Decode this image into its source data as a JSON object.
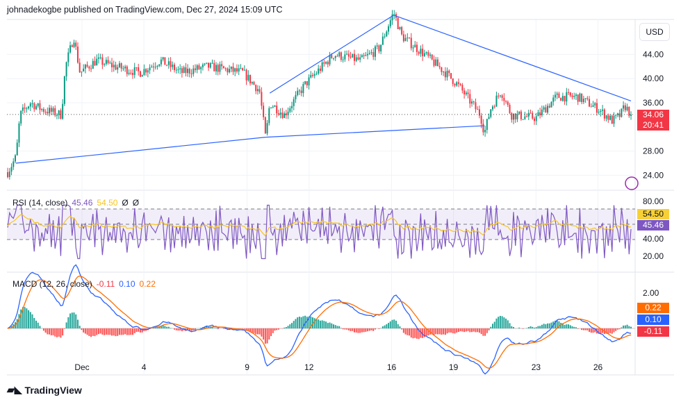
{
  "header": "johnadekogbe published on TradingView.com, Dec 27, 2024 15:09 UTC",
  "currency": "USD",
  "footer": "TradingView",
  "price_tag": {
    "price": "34.06",
    "countdown": "20:41",
    "color": "#f23645"
  },
  "rsi": {
    "label": "RSI (14, close)",
    "value": "45.46",
    "ma": "54.50",
    "na1": "Ø",
    "na2": "Ø",
    "ticks": [
      "80.00",
      "40.00",
      "20.00"
    ]
  },
  "macd": {
    "label": "MACD (12, 26, close)",
    "hist": "-0.11",
    "macd": "0.10",
    "signal": "0.22",
    "ticks": [
      "2.00"
    ]
  },
  "chart_data": {
    "type": "candlestick",
    "price_ticks": [
      "44.00",
      "40.00",
      "36.00",
      "28.00",
      "24.00"
    ],
    "x_ticks": [
      "Dec",
      "4",
      "9",
      "12",
      "16",
      "19",
      "23",
      "26"
    ],
    "x_tick_days": [
      1,
      4,
      9,
      12,
      16,
      19,
      23,
      26
    ],
    "price_path": [
      [
        -2.6,
        24.5
      ],
      [
        -2.2,
        27
      ],
      [
        -2,
        34
      ],
      [
        -1.5,
        36
      ],
      [
        -1,
        35
      ],
      [
        0,
        34
      ],
      [
        0.2,
        42
      ],
      [
        0.6,
        47
      ],
      [
        0.9,
        41
      ],
      [
        1.7,
        43
      ],
      [
        2.6,
        42
      ],
      [
        3.8,
        41
      ],
      [
        4.8,
        43
      ],
      [
        5.8,
        41
      ],
      [
        7.1,
        42
      ],
      [
        8.8,
        41
      ],
      [
        9.6,
        38
      ],
      [
        9.9,
        30
      ],
      [
        10.1,
        36
      ],
      [
        10.8,
        34
      ],
      [
        11.8,
        39
      ],
      [
        13.2,
        44
      ],
      [
        14.5,
        43
      ],
      [
        15.4,
        45
      ],
      [
        16.1,
        51
      ],
      [
        16.5,
        47
      ],
      [
        17.6,
        44
      ],
      [
        18.6,
        41
      ],
      [
        19.2,
        39
      ],
      [
        20.3,
        34
      ],
      [
        20.5,
        31
      ],
      [
        20.8,
        35
      ],
      [
        21.3,
        38
      ],
      [
        21.8,
        34
      ],
      [
        23,
        33.5
      ],
      [
        24,
        37
      ],
      [
        25,
        37
      ],
      [
        26,
        35
      ],
      [
        26.7,
        33
      ],
      [
        27.1,
        34
      ],
      [
        27.3,
        35.5
      ],
      [
        27.6,
        34.06
      ]
    ],
    "trendlines": [
      [
        [
          -2.2,
          26
        ],
        [
          9.9,
          30.3
        ]
      ],
      [
        [
          9.9,
          30.3
        ],
        [
          20.5,
          32.2
        ]
      ],
      [
        [
          10.1,
          37.6
        ],
        [
          16.1,
          50.5
        ]
      ],
      [
        [
          16.1,
          50.5
        ],
        [
          27.6,
          36.3
        ]
      ]
    ],
    "current_price": 34.06
  }
}
